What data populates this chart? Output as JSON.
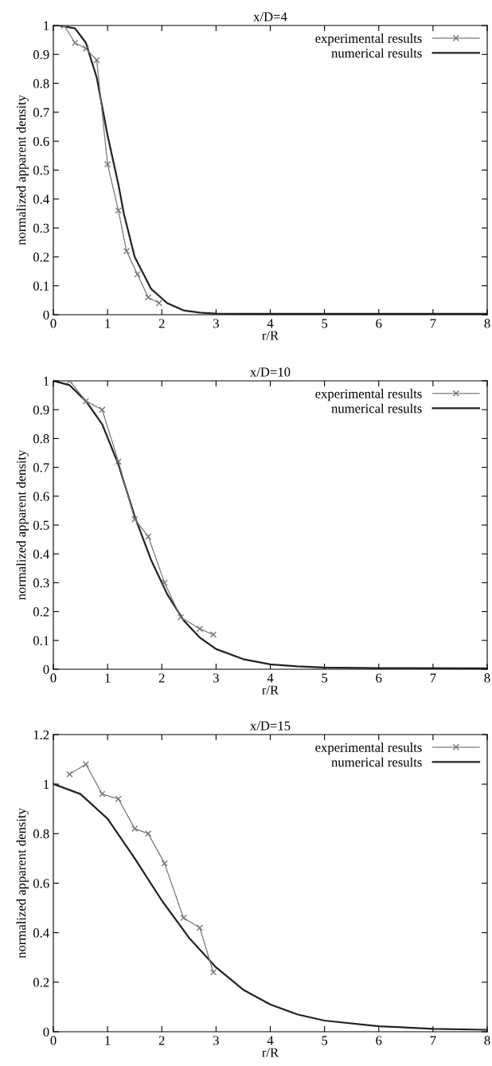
{
  "chart_data": [
    {
      "type": "line",
      "title": "x/D=4",
      "xlabel": "r/R",
      "ylabel": "normalized apparent density",
      "xlim": [
        0,
        8
      ],
      "ylim": [
        0,
        1
      ],
      "xticks": [
        0,
        1,
        2,
        3,
        4,
        5,
        6,
        7,
        8
      ],
      "yticks": [
        0,
        0.1,
        0.2,
        0.3,
        0.4,
        0.5,
        0.6,
        0.7,
        0.8,
        0.9,
        1
      ],
      "grid": false,
      "legend": "top right",
      "series": [
        {
          "name": "experimental results",
          "color": "#777777",
          "marker": "cross",
          "x": [
            0.2,
            0.4,
            0.6,
            0.8,
            1.0,
            1.2,
            1.35,
            1.55,
            1.75,
            1.95
          ],
          "values": [
            1.0,
            0.94,
            0.92,
            0.88,
            0.52,
            0.36,
            0.22,
            0.14,
            0.06,
            0.04
          ]
        },
        {
          "name": "numerical results",
          "color": "#222222",
          "marker": "none",
          "x": [
            0,
            0.1,
            0.4,
            0.6,
            0.8,
            1.0,
            1.2,
            1.3,
            1.5,
            1.8,
            2.1,
            2.4,
            2.7,
            3.0,
            4.0,
            8.0
          ],
          "values": [
            1.0,
            1.0,
            0.99,
            0.94,
            0.82,
            0.62,
            0.45,
            0.35,
            0.2,
            0.09,
            0.04,
            0.015,
            0.007,
            0.004,
            0.003,
            0.003
          ]
        }
      ]
    },
    {
      "type": "line",
      "title": "x/D=10",
      "xlabel": "r/R",
      "ylabel": "normalized apparent density",
      "xlim": [
        0,
        8
      ],
      "ylim": [
        0,
        1
      ],
      "xticks": [
        0,
        1,
        2,
        3,
        4,
        5,
        6,
        7,
        8
      ],
      "yticks": [
        0,
        0.1,
        0.2,
        0.3,
        0.4,
        0.5,
        0.6,
        0.7,
        0.8,
        0.9,
        1
      ],
      "grid": false,
      "legend": "top right",
      "series": [
        {
          "name": "experimental results",
          "color": "#777777",
          "marker": "cross",
          "x": [
            0.3,
            0.6,
            0.9,
            1.2,
            1.5,
            1.75,
            2.05,
            2.35,
            2.7,
            2.95
          ],
          "values": [
            1.0,
            0.93,
            0.9,
            0.72,
            0.52,
            0.46,
            0.3,
            0.18,
            0.14,
            0.12
          ]
        },
        {
          "name": "numerical results",
          "color": "#222222",
          "marker": "none",
          "x": [
            0,
            0.3,
            0.6,
            0.9,
            1.2,
            1.5,
            1.8,
            2.1,
            2.4,
            2.7,
            3.0,
            3.5,
            4.0,
            4.5,
            5.0,
            6.0,
            8.0
          ],
          "values": [
            1.0,
            0.985,
            0.93,
            0.85,
            0.71,
            0.53,
            0.38,
            0.26,
            0.17,
            0.11,
            0.07,
            0.035,
            0.017,
            0.01,
            0.006,
            0.004,
            0.003
          ]
        }
      ]
    },
    {
      "type": "line",
      "title": "x/D=15",
      "xlabel": "r/R",
      "ylabel": "normalized apparent density",
      "xlim": [
        0,
        8
      ],
      "ylim": [
        0,
        1.2
      ],
      "xticks": [
        0,
        1,
        2,
        3,
        4,
        5,
        6,
        7,
        8
      ],
      "yticks": [
        0,
        0.2,
        0.4,
        0.6,
        0.8,
        1,
        1.2
      ],
      "grid": false,
      "legend": "top right",
      "series": [
        {
          "name": "experimental results",
          "color": "#777777",
          "marker": "cross",
          "x": [
            0.3,
            0.6,
            0.9,
            1.2,
            1.5,
            1.75,
            2.05,
            2.4,
            2.7,
            2.95
          ],
          "values": [
            1.04,
            1.08,
            0.96,
            0.94,
            0.82,
            0.8,
            0.68,
            0.46,
            0.42,
            0.24
          ]
        },
        {
          "name": "numerical results",
          "color": "#222222",
          "marker": "none",
          "x": [
            0,
            0.5,
            1.0,
            1.5,
            2.0,
            2.5,
            3.0,
            3.5,
            4.0,
            4.5,
            5.0,
            6.0,
            7.0,
            8.0
          ],
          "values": [
            1.0,
            0.96,
            0.86,
            0.7,
            0.53,
            0.38,
            0.26,
            0.17,
            0.11,
            0.07,
            0.045,
            0.022,
            0.012,
            0.008
          ]
        }
      ]
    }
  ]
}
